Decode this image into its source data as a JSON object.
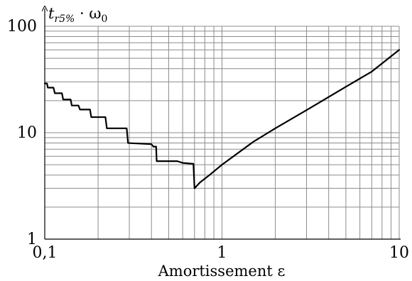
{
  "chart_data": {
    "type": "line",
    "xscale": "log",
    "yscale": "log",
    "xlim": [
      0.1,
      10
    ],
    "ylim": [
      1,
      100
    ],
    "xlabel": "Amortissement ε",
    "ylabel_parts": {
      "main": "t",
      "sub": "r5%",
      "mid": " · ω",
      "sub2": "0"
    },
    "x_ticks": [
      {
        "value": 0.1,
        "label": "0,1"
      },
      {
        "value": 1,
        "label": "1"
      },
      {
        "value": 10,
        "label": "10"
      }
    ],
    "y_ticks": [
      {
        "value": 1,
        "label": "1"
      },
      {
        "value": 10,
        "label": "10"
      },
      {
        "value": 100,
        "label": "100"
      }
    ],
    "grid": true,
    "series": [
      {
        "x": [
          0.1,
          0.103,
          0.104,
          0.112,
          0.114,
          0.125,
          0.127,
          0.14,
          0.142,
          0.155,
          0.158,
          0.18,
          0.183,
          0.22,
          0.224,
          0.29,
          0.295,
          0.4,
          0.41,
          0.425,
          0.428,
          0.56,
          0.6,
          0.69,
          0.7,
          0.75,
          0.85,
          1.0,
          1.5,
          2.0,
          3.0,
          5.0,
          7.0,
          10.0
        ],
        "y": [
          29,
          29,
          26.5,
          26.5,
          23.5,
          23.5,
          20.5,
          20.5,
          18,
          18,
          16.5,
          16.5,
          14,
          14,
          11,
          11,
          8,
          7.8,
          7.4,
          7.4,
          5.4,
          5.4,
          5.2,
          5.1,
          3.0,
          3.4,
          4.0,
          5.0,
          8.2,
          11.0,
          16.3,
          27.0,
          37.5,
          60
        ]
      }
    ]
  }
}
